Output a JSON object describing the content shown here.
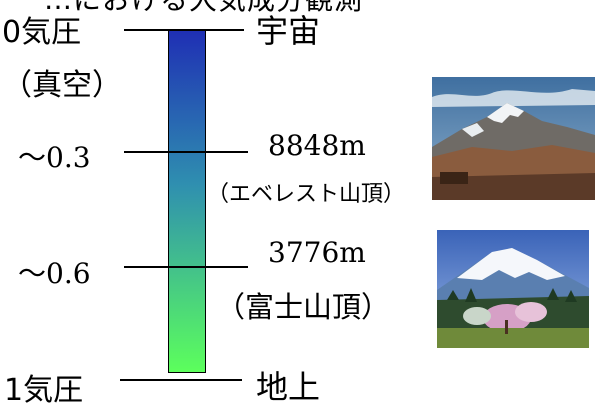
{
  "header": {
    "cut_title": "…における大気成分観測"
  },
  "scale": {
    "gradient_top": "#1f2fb4",
    "gradient_mid": "#2f8fb0",
    "gradient_bottom": "#5cff5c",
    "levels": [
      {
        "left_label": "0気圧",
        "left_sub": "（真空）",
        "right_label": "宇宙",
        "right_sub": ""
      },
      {
        "left_label": "～0.3",
        "left_sub": "",
        "right_label": "8848m",
        "right_sub": "（エベレスト山頂）"
      },
      {
        "left_label": "～0.6",
        "left_sub": "",
        "right_label": "3776m",
        "right_sub": "（富士山頂）"
      },
      {
        "left_label": "1気圧",
        "left_sub": "",
        "right_label": "地上",
        "right_sub": ""
      }
    ]
  },
  "photos": [
    {
      "name": "everest-photo"
    },
    {
      "name": "fuji-photo"
    }
  ]
}
